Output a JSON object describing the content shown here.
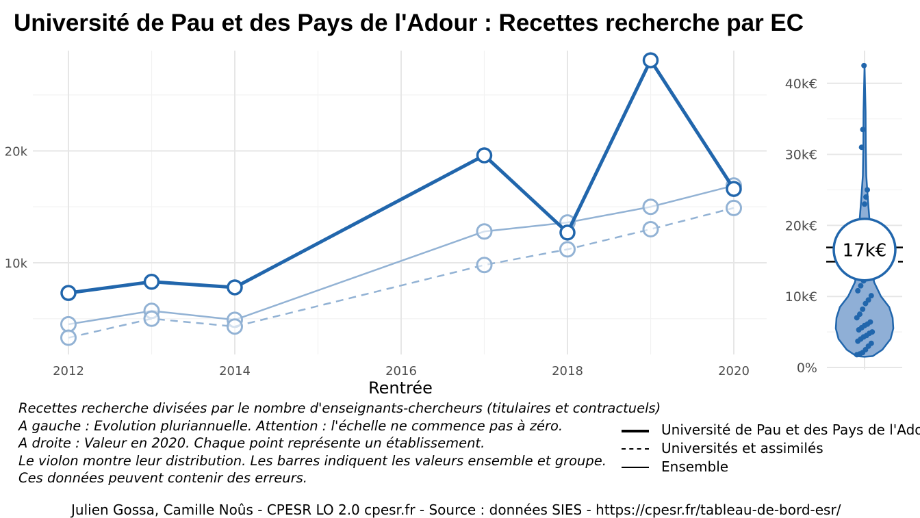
{
  "title": "Université de Pau et des Pays de l'Adour  :  Recettes recherche par EC",
  "chart_data": [
    {
      "type": "line",
      "xlabel": "Rentrée",
      "ylabel": "",
      "x": [
        2012,
        2013,
        2014,
        2017,
        2018,
        2019,
        2020
      ],
      "xlim": [
        2012,
        2020
      ],
      "ylim": [
        2000,
        30000
      ],
      "x_ticks": [
        2012,
        2014,
        2016,
        2018,
        2020
      ],
      "x_tick_labels": [
        "2012",
        "2014",
        "2016",
        "2018",
        "2020"
      ],
      "y_ticks": [
        10000,
        20000
      ],
      "y_tick_labels": [
        "10k",
        "20k"
      ],
      "grid": true,
      "series": [
        {
          "name": "Université de Pau et des Pays de l'Adour",
          "style": "solid-bold",
          "color": "#2166ac",
          "values": [
            7300,
            8300,
            7800,
            19600,
            12700,
            28100,
            16600
          ]
        },
        {
          "name": "Ensemble",
          "style": "solid",
          "color": "#92b2d4",
          "values": [
            4500,
            5700,
            4900,
            12800,
            13600,
            15000,
            16900
          ]
        },
        {
          "name": "Universités et assimilés",
          "style": "dashed",
          "color": "#92b2d4",
          "values": [
            3300,
            5000,
            4300,
            9800,
            11200,
            13000,
            14900
          ]
        }
      ]
    },
    {
      "type": "violin",
      "ylim": [
        0,
        42500
      ],
      "y_ticks": [
        0,
        10000,
        20000,
        30000,
        40000
      ],
      "y_tick_labels": [
        "0%",
        "10k€",
        "20k€",
        "30k€",
        "40k€"
      ],
      "grid": true,
      "highlight_value": 16600,
      "highlight_label": "17k€",
      "bar_values": [
        16900,
        14900
      ],
      "points": [
        1800,
        1900,
        2100,
        2500,
        3000,
        3400,
        3700,
        4000,
        4300,
        4500,
        4800,
        5000,
        5300,
        5600,
        5900,
        6100,
        6400,
        7000,
        7500,
        8200,
        9000,
        9500,
        10100,
        10800,
        11500,
        12200,
        13000,
        14000,
        15500,
        17500,
        19000,
        23000,
        24000,
        25000,
        31000,
        33500,
        42500
      ]
    }
  ],
  "caption": [
    "Recettes recherche divisées par le nombre d'enseignants-chercheurs (titulaires et contractuels)",
    "A gauche : Evolution pluriannuelle. Attention : l'échelle ne commence pas à zéro.",
    "A droite : Valeur en 2020. Chaque point représente un établissement.",
    "Le violon montre leur distribution. Les barres indiquent les valeurs ensemble et groupe.",
    "Ces données peuvent contenir des erreurs."
  ],
  "legend": [
    {
      "label": "Université de Pau et des Pays de l'Adour",
      "style": "solid-bold"
    },
    {
      "label": "Universités et assimilés",
      "style": "dashed"
    },
    {
      "label": "Ensemble",
      "style": "solid"
    }
  ],
  "credit": "Julien Gossa, Camille Noûs - CPESR LO 2.0 cpesr.fr - Source : données SIES - https://cpesr.fr/tableau-de-bord-esr/"
}
